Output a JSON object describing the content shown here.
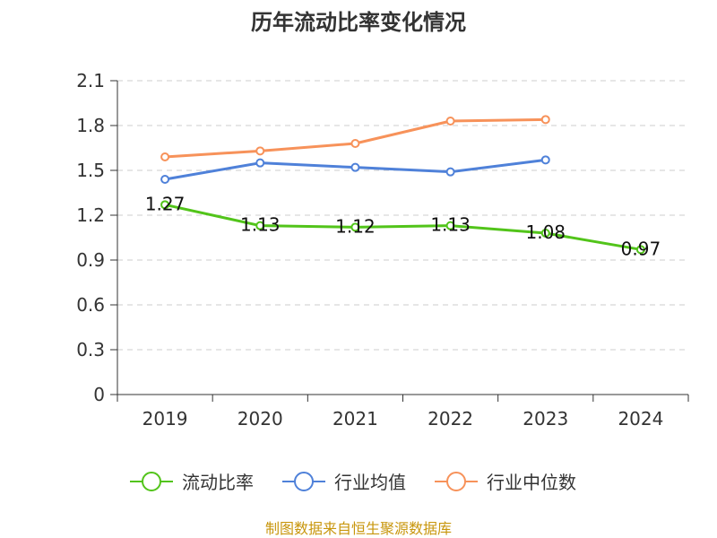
{
  "chart_data": {
    "type": "line",
    "title": "历年流动比率变化情况",
    "categories": [
      "2019",
      "2020",
      "2021",
      "2022",
      "2023",
      "2024"
    ],
    "ylim": [
      0,
      2.1
    ],
    "yticks": [
      "0",
      "0.3",
      "0.6",
      "0.9",
      "1.2",
      "1.5",
      "1.8",
      "2.1"
    ],
    "grid": true,
    "legend_position": "bottom",
    "series": [
      {
        "name": "流动比率",
        "color": "#52c41a",
        "values": [
          1.27,
          1.13,
          1.12,
          1.13,
          1.08,
          0.97
        ],
        "labels": [
          "1.27",
          "1.13",
          "1.12",
          "1.13",
          "1.08",
          "0.97"
        ]
      },
      {
        "name": "行业均值",
        "color": "#4f81d9",
        "values": [
          1.44,
          1.55,
          1.52,
          1.49,
          1.57,
          null
        ]
      },
      {
        "name": "行业中位数",
        "color": "#f7925a",
        "values": [
          1.59,
          1.63,
          1.68,
          1.83,
          1.84,
          null
        ]
      }
    ],
    "source": "制图数据来自恒生聚源数据库"
  }
}
